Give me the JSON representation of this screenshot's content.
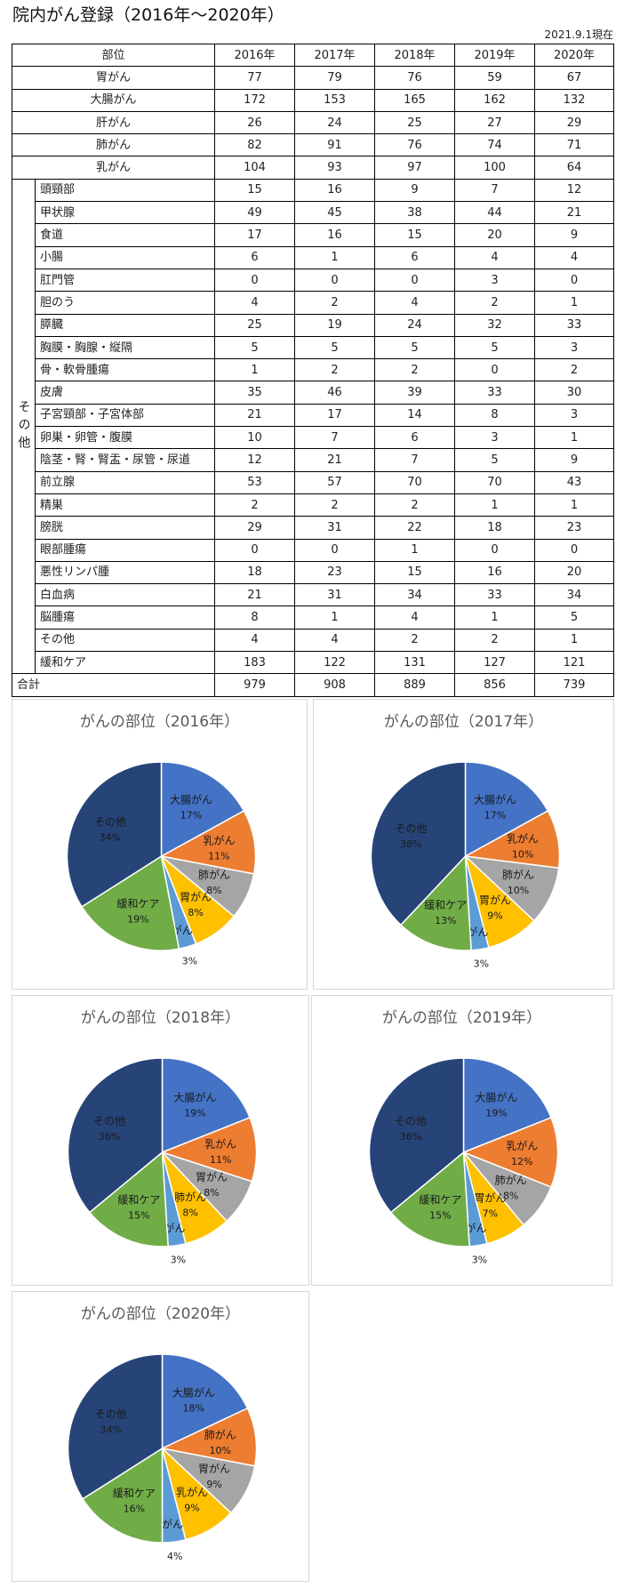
{
  "title": "院内がん登録（2016年～2020年）",
  "as_of": "2021.9.1現在",
  "table": {
    "header": {
      "site": "部位",
      "years": [
        "2016年",
        "2017年",
        "2018年",
        "2019年",
        "2020年"
      ]
    },
    "main_rows": [
      {
        "label": "胃がん",
        "values": [
          77,
          79,
          76,
          59,
          67
        ]
      },
      {
        "label": "大腸がん",
        "values": [
          172,
          153,
          165,
          162,
          132
        ]
      },
      {
        "label": "肝がん",
        "values": [
          26,
          24,
          25,
          27,
          29
        ]
      },
      {
        "label": "肺がん",
        "values": [
          82,
          91,
          76,
          74,
          71
        ]
      },
      {
        "label": "乳がん",
        "values": [
          104,
          93,
          97,
          100,
          64
        ]
      }
    ],
    "other_group_label": "その他",
    "other_rows": [
      {
        "label": "頭頸部",
        "values": [
          15,
          16,
          9,
          7,
          12
        ]
      },
      {
        "label": "甲状腺",
        "values": [
          49,
          45,
          38,
          44,
          21
        ]
      },
      {
        "label": "食道",
        "values": [
          17,
          16,
          15,
          20,
          9
        ]
      },
      {
        "label": "小腸",
        "values": [
          6,
          1,
          6,
          4,
          4
        ]
      },
      {
        "label": "肛門管",
        "values": [
          0,
          0,
          0,
          3,
          0
        ]
      },
      {
        "label": "胆のう",
        "values": [
          4,
          2,
          4,
          2,
          1
        ]
      },
      {
        "label": "膵臓",
        "values": [
          25,
          19,
          24,
          32,
          33
        ]
      },
      {
        "label": "胸膜・胸腺・縦隔",
        "values": [
          5,
          5,
          5,
          5,
          3
        ]
      },
      {
        "label": "骨・軟骨腫瘍",
        "values": [
          1,
          2,
          2,
          0,
          2
        ]
      },
      {
        "label": "皮膚",
        "values": [
          35,
          46,
          39,
          33,
          30
        ]
      },
      {
        "label": "子宮頸部・子宮体部",
        "values": [
          21,
          17,
          14,
          8,
          3
        ]
      },
      {
        "label": "卵巣・卵管・腹膜",
        "values": [
          10,
          7,
          6,
          3,
          1
        ]
      },
      {
        "label": "陰茎・腎・腎盂・尿管・尿道",
        "values": [
          12,
          21,
          7,
          5,
          9
        ]
      },
      {
        "label": "前立腺",
        "values": [
          53,
          57,
          70,
          70,
          43
        ]
      },
      {
        "label": "精巣",
        "values": [
          2,
          2,
          2,
          1,
          1
        ]
      },
      {
        "label": "膀胱",
        "values": [
          29,
          31,
          22,
          18,
          23
        ]
      },
      {
        "label": "眼部腫瘍",
        "values": [
          0,
          0,
          1,
          0,
          0
        ]
      },
      {
        "label": "悪性リンパ腫",
        "values": [
          18,
          23,
          15,
          16,
          20
        ]
      },
      {
        "label": "白血病",
        "values": [
          21,
          31,
          34,
          33,
          34
        ]
      },
      {
        "label": "脳腫瘍",
        "values": [
          8,
          1,
          4,
          1,
          5
        ]
      },
      {
        "label": "その他",
        "values": [
          4,
          4,
          2,
          2,
          1
        ]
      },
      {
        "label": "緩和ケア",
        "values": [
          183,
          122,
          131,
          127,
          121
        ]
      }
    ],
    "total": {
      "label": "合計",
      "values": [
        979,
        908,
        889,
        856,
        739
      ]
    }
  },
  "colors": {
    "blue": "#4472C4",
    "orange": "#ED7D31",
    "gray": "#A5A5A5",
    "yellow": "#FFC000",
    "lightblue": "#5B9BD5",
    "green": "#70AD47",
    "navy": "#264478"
  },
  "chart_data": [
    {
      "type": "pie",
      "title": "がんの部位（2016年）",
      "slices": [
        {
          "label": "大腸がん",
          "value": 17,
          "color": "blue"
        },
        {
          "label": "乳がん",
          "value": 11,
          "color": "orange"
        },
        {
          "label": "肺がん",
          "value": 8,
          "color": "gray"
        },
        {
          "label": "胃がん",
          "value": 8,
          "color": "yellow"
        },
        {
          "label": "肝がん",
          "value": 3,
          "color": "lightblue"
        },
        {
          "label": "緩和ケア",
          "value": 19,
          "color": "green"
        },
        {
          "label": "その他",
          "value": 34,
          "color": "navy"
        }
      ]
    },
    {
      "type": "pie",
      "title": "がんの部位（2017年）",
      "slices": [
        {
          "label": "大腸がん",
          "value": 17,
          "color": "blue"
        },
        {
          "label": "乳がん",
          "value": 10,
          "color": "orange"
        },
        {
          "label": "肺がん",
          "value": 10,
          "color": "gray"
        },
        {
          "label": "胃がん",
          "value": 9,
          "color": "yellow"
        },
        {
          "label": "肝がん",
          "value": 3,
          "color": "lightblue"
        },
        {
          "label": "緩和ケア",
          "value": 13,
          "color": "green"
        },
        {
          "label": "その他",
          "value": 38,
          "color": "navy"
        }
      ]
    },
    {
      "type": "pie",
      "title": "がんの部位（2018年）",
      "slices": [
        {
          "label": "大腸がん",
          "value": 19,
          "color": "blue"
        },
        {
          "label": "乳がん",
          "value": 11,
          "color": "orange"
        },
        {
          "label": "胃がん",
          "value": 8,
          "color": "gray"
        },
        {
          "label": "肺がん",
          "value": 8,
          "color": "yellow"
        },
        {
          "label": "肝がん",
          "value": 3,
          "color": "lightblue"
        },
        {
          "label": "緩和ケア",
          "value": 15,
          "color": "green"
        },
        {
          "label": "その他",
          "value": 36,
          "color": "navy"
        }
      ]
    },
    {
      "type": "pie",
      "title": "がんの部位（2019年）",
      "slices": [
        {
          "label": "大腸がん",
          "value": 19,
          "color": "blue"
        },
        {
          "label": "乳がん",
          "value": 12,
          "color": "orange"
        },
        {
          "label": "肺がん",
          "value": 8,
          "color": "gray"
        },
        {
          "label": "胃がん",
          "value": 7,
          "color": "yellow"
        },
        {
          "label": "肝がん",
          "value": 3,
          "color": "lightblue"
        },
        {
          "label": "緩和ケア",
          "value": 15,
          "color": "green"
        },
        {
          "label": "その他",
          "value": 36,
          "color": "navy"
        }
      ]
    },
    {
      "type": "pie",
      "title": "がんの部位（2020年）",
      "slices": [
        {
          "label": "大腸がん",
          "value": 18,
          "color": "blue"
        },
        {
          "label": "肺がん",
          "value": 10,
          "color": "orange"
        },
        {
          "label": "胃がん",
          "value": 9,
          "color": "gray"
        },
        {
          "label": "乳がん",
          "value": 9,
          "color": "yellow"
        },
        {
          "label": "肝がん",
          "value": 4,
          "color": "lightblue"
        },
        {
          "label": "緩和ケア",
          "value": 16,
          "color": "green"
        },
        {
          "label": "その他",
          "value": 34,
          "color": "navy"
        }
      ]
    }
  ]
}
